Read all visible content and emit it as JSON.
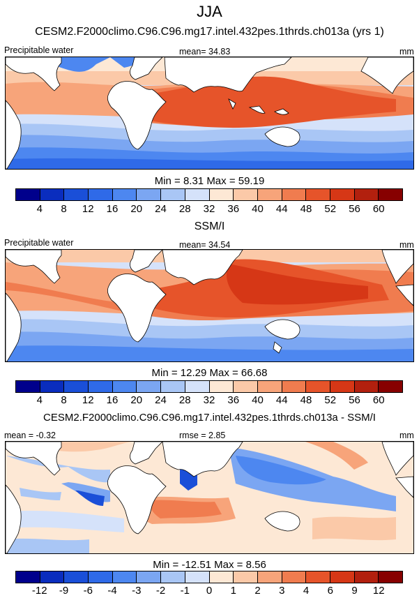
{
  "title": "JJA",
  "panels": [
    {
      "id": "model",
      "title": "CESM2.F2000climo.C96.C96.mg17.intel.432pes.1thrds.ch013a (yrs 1)",
      "left_label": "Precipitable water",
      "center_label": "mean=  34.83",
      "right_label": "mm",
      "minmax": "Min =   8.31 Max =  59.19"
    },
    {
      "id": "obs",
      "title": "SSM/I",
      "left_label": "Precipitable water",
      "center_label": "mean=  34.54",
      "right_label": "mm",
      "minmax": "Min =  12.29 Max =  66.68"
    },
    {
      "id": "diff",
      "title": "CESM2.F2000climo.C96.C96.mg17.intel.432pes.1thrds.ch013a - SSM/I",
      "left_label": "mean =  -0.32",
      "center_label": "rmse =   2.85",
      "right_label": "mm",
      "minmax": "Min = -12.51 Max =   8.56"
    }
  ],
  "colorbar_abs": {
    "colors": [
      "#00008c",
      "#0a2dbe",
      "#1a4fd8",
      "#2f6ae8",
      "#4d87f0",
      "#7ba6f2",
      "#a9c6f5",
      "#d5e2fa",
      "#fde8d5",
      "#fbc9a8",
      "#f7a47a",
      "#f07c4f",
      "#e6542a",
      "#d63716",
      "#b2200e",
      "#870000"
    ],
    "ticks": [
      "4",
      "8",
      "12",
      "16",
      "20",
      "24",
      "28",
      "32",
      "36",
      "40",
      "44",
      "48",
      "52",
      "56",
      "60"
    ]
  },
  "colorbar_diff": {
    "colors": [
      "#00008c",
      "#0a2dbe",
      "#1a4fd8",
      "#2f6ae8",
      "#4d87f0",
      "#7ba6f2",
      "#a9c6f5",
      "#d5e2fa",
      "#fde8d5",
      "#fbc9a8",
      "#f7a47a",
      "#f07c4f",
      "#e6542a",
      "#d63716",
      "#b2200e",
      "#870000"
    ],
    "ticks": [
      "-12",
      "-9",
      "-6",
      "-4",
      "-3",
      "-2",
      "-1",
      "0",
      "1",
      "2",
      "3",
      "4",
      "6",
      "9",
      "12"
    ]
  }
}
